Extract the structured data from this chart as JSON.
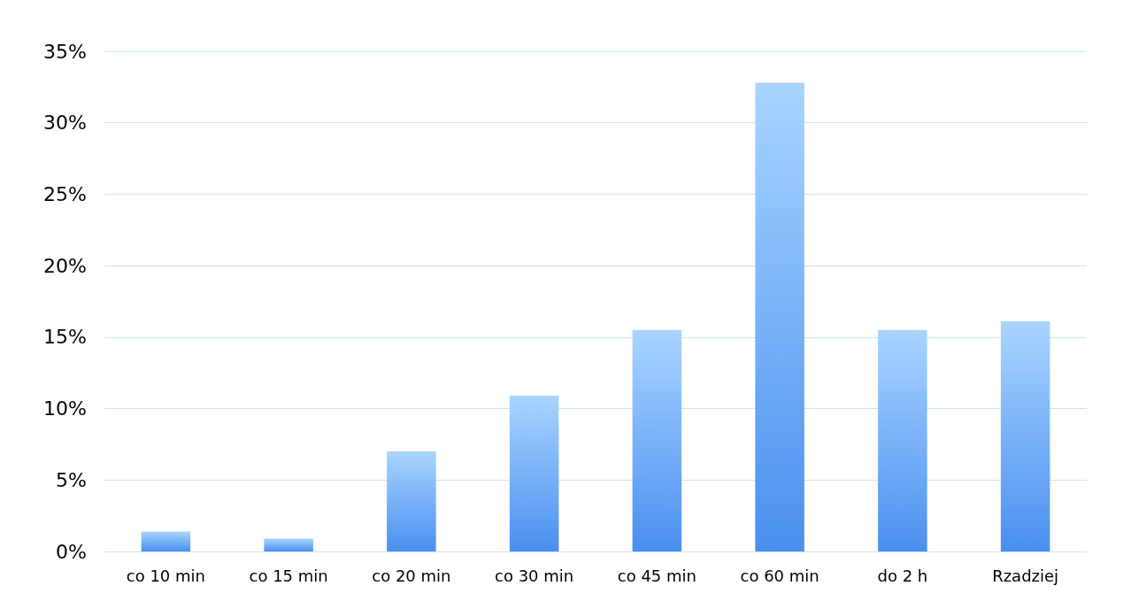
{
  "chart_data": {
    "type": "bar",
    "categories": [
      "co 10 min",
      "co 15 min",
      "co 20 min",
      "co 30 min",
      "co 45 min",
      "co 60 min",
      "do 2 h",
      "Rzadziej"
    ],
    "values": [
      1.4,
      0.9,
      7.0,
      10.9,
      15.5,
      32.8,
      15.5,
      16.1
    ],
    "color": "#4a8ff0",
    "ylim": [
      0,
      35
    ],
    "yticks": [
      {
        "value": 0,
        "label": "0%"
      },
      {
        "value": 5,
        "label": "5%"
      },
      {
        "value": 10,
        "label": "10%"
      },
      {
        "value": 15,
        "label": "15%"
      },
      {
        "value": 20,
        "label": "20%"
      },
      {
        "value": 25,
        "label": "25%"
      },
      {
        "value": 30,
        "label": "30%"
      },
      {
        "value": 35,
        "label": "35%"
      }
    ],
    "grid": "y"
  }
}
